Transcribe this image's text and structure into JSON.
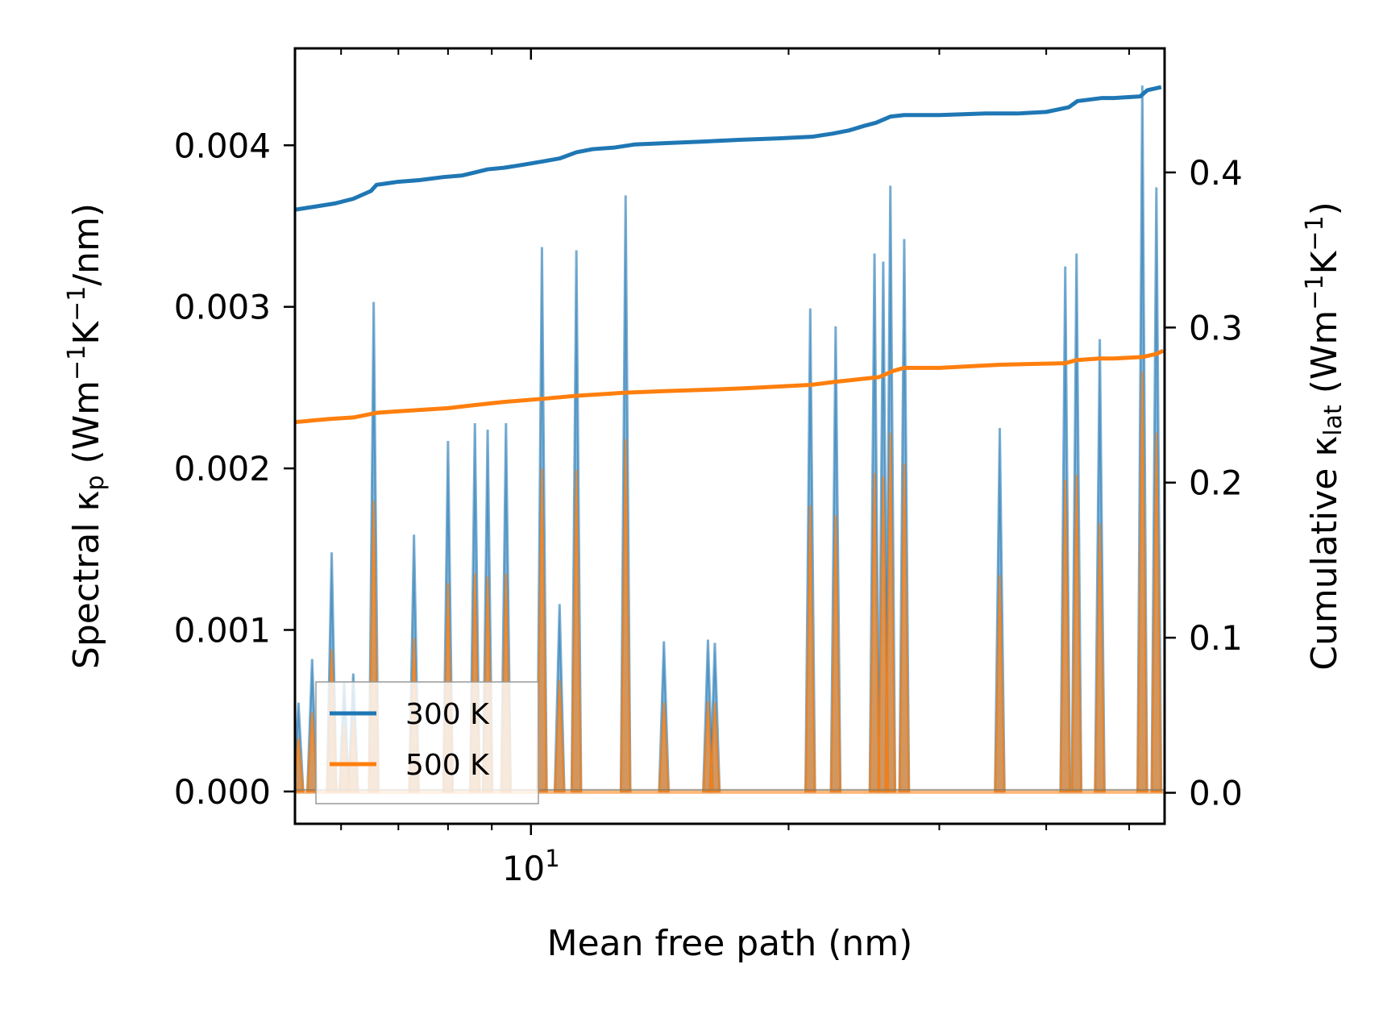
{
  "chart_data": {
    "type": "line",
    "x_scale": "log",
    "xlim": [
      5.3,
      55
    ],
    "ylim_left": [
      -0.0002,
      0.0046
    ],
    "ylim_right": [
      -0.02,
      0.48
    ],
    "xlabel": "Mean free path (nm)",
    "ylabel_left": {
      "main": "Spectral κ",
      "sub": "p",
      "unit_open": " (Wm",
      "exp1": "−1",
      "k": "K",
      "exp2": "−1",
      "unit_close": "/nm)"
    },
    "ylabel_right": {
      "main": "Cumulative κ",
      "sub": "lat",
      "unit_open": " (Wm",
      "exp1": "−1",
      "k": "K",
      "exp2": "−1",
      "unit_close": ")"
    },
    "x_tick_label": {
      "base": "10",
      "exp": "1",
      "value": 10
    },
    "y_ticks_left": [
      {
        "value": 0.0,
        "label": "0.000"
      },
      {
        "value": 0.001,
        "label": "0.001"
      },
      {
        "value": 0.002,
        "label": "0.002"
      },
      {
        "value": 0.003,
        "label": "0.003"
      },
      {
        "value": 0.004,
        "label": "0.004"
      }
    ],
    "y_ticks_right": [
      {
        "value": 0.0,
        "label": "0.0"
      },
      {
        "value": 0.1,
        "label": "0.1"
      },
      {
        "value": 0.2,
        "label": "0.2"
      },
      {
        "value": 0.3,
        "label": "0.3"
      },
      {
        "value": 0.4,
        "label": "0.4"
      }
    ],
    "x_minor_ticks": [
      6,
      7,
      8,
      9,
      20,
      30,
      40,
      50
    ],
    "legend": {
      "position": "lower-left",
      "entries": [
        "300 K",
        "500 K"
      ]
    },
    "spectral_peaks": [
      {
        "x": 5.35,
        "a": 0.00055,
        "b": 0.00033
      },
      {
        "x": 5.55,
        "a": 0.00082,
        "b": 0.00049
      },
      {
        "x": 5.85,
        "a": 0.00148,
        "b": 0.00088
      },
      {
        "x": 6.05,
        "a": 0.00068,
        "b": 0.00041
      },
      {
        "x": 6.2,
        "a": 0.00073,
        "b": 0.00044
      },
      {
        "x": 6.55,
        "a": 0.00303,
        "b": 0.0018
      },
      {
        "x": 7.3,
        "a": 0.00159,
        "b": 0.00095
      },
      {
        "x": 8.0,
        "a": 0.00217,
        "b": 0.00129
      },
      {
        "x": 8.6,
        "a": 0.00228,
        "b": 0.00135
      },
      {
        "x": 8.9,
        "a": 0.00224,
        "b": 0.00133
      },
      {
        "x": 9.35,
        "a": 0.00228,
        "b": 0.00135
      },
      {
        "x": 10.3,
        "a": 0.00337,
        "b": 0.002
      },
      {
        "x": 10.8,
        "a": 0.00116,
        "b": 0.00069
      },
      {
        "x": 11.3,
        "a": 0.00335,
        "b": 0.00199
      },
      {
        "x": 12.9,
        "a": 0.00369,
        "b": 0.00218
      },
      {
        "x": 14.3,
        "a": 0.00093,
        "b": 0.00055
      },
      {
        "x": 16.1,
        "a": 0.00094,
        "b": 0.00056
      },
      {
        "x": 16.4,
        "a": 0.00092,
        "b": 0.00055
      },
      {
        "x": 21.2,
        "a": 0.00299,
        "b": 0.00177
      },
      {
        "x": 22.7,
        "a": 0.00288,
        "b": 0.00171
      },
      {
        "x": 25.2,
        "a": 0.00333,
        "b": 0.00197
      },
      {
        "x": 25.8,
        "a": 0.00328,
        "b": 0.00195
      },
      {
        "x": 26.3,
        "a": 0.00375,
        "b": 0.00222
      },
      {
        "x": 27.3,
        "a": 0.00342,
        "b": 0.00203
      },
      {
        "x": 35.3,
        "a": 0.00225,
        "b": 0.00134
      },
      {
        "x": 42.1,
        "a": 0.00325,
        "b": 0.00193
      },
      {
        "x": 43.4,
        "a": 0.00333,
        "b": 0.00196
      },
      {
        "x": 46.2,
        "a": 0.0028,
        "b": 0.00166
      },
      {
        "x": 51.8,
        "a": 0.00437,
        "b": 0.0026
      },
      {
        "x": 53.8,
        "a": 0.00374,
        "b": 0.00222
      }
    ],
    "series": [
      {
        "name": "300 K",
        "color": "#1f77b4",
        "axis": "right",
        "x": [
          5.3,
          5.6,
          5.9,
          6.2,
          6.5,
          6.6,
          6.8,
          7.0,
          7.4,
          7.9,
          8.3,
          8.6,
          8.9,
          9.3,
          9.8,
          10.3,
          10.8,
          11.3,
          11.8,
          12.5,
          13.2,
          14.5,
          16.0,
          17.5,
          19.5,
          21.3,
          22.5,
          23.5,
          24.5,
          25.3,
          26.3,
          27.3,
          30,
          34,
          37,
          40,
          42.5,
          43.5,
          46.5,
          48,
          51.5,
          52.5,
          54.5
        ],
        "values": [
          0.376,
          0.378,
          0.38,
          0.383,
          0.388,
          0.392,
          0.393,
          0.394,
          0.395,
          0.397,
          0.398,
          0.4,
          0.402,
          0.403,
          0.405,
          0.407,
          0.409,
          0.413,
          0.415,
          0.416,
          0.418,
          0.419,
          0.42,
          0.421,
          0.422,
          0.423,
          0.425,
          0.427,
          0.43,
          0.432,
          0.436,
          0.437,
          0.437,
          0.438,
          0.438,
          0.439,
          0.442,
          0.446,
          0.448,
          0.448,
          0.449,
          0.453,
          0.455
        ]
      },
      {
        "name": "500 K",
        "color": "#ff7f0e",
        "axis": "right",
        "x": [
          5.3,
          5.8,
          6.2,
          6.6,
          7.0,
          7.5,
          8.0,
          8.6,
          9.3,
          10.3,
          11.3,
          12.9,
          14.3,
          16.3,
          18.0,
          21.2,
          22.7,
          25.5,
          26.5,
          27.3,
          30,
          35.3,
          42.1,
          43.4,
          46.2,
          48,
          51.8,
          53.8,
          54.8
        ],
        "values": [
          0.239,
          0.241,
          0.242,
          0.245,
          0.246,
          0.247,
          0.248,
          0.25,
          0.252,
          0.254,
          0.256,
          0.258,
          0.259,
          0.26,
          0.261,
          0.263,
          0.265,
          0.268,
          0.272,
          0.274,
          0.274,
          0.276,
          0.277,
          0.279,
          0.28,
          0.28,
          0.281,
          0.283,
          0.285
        ]
      }
    ]
  }
}
